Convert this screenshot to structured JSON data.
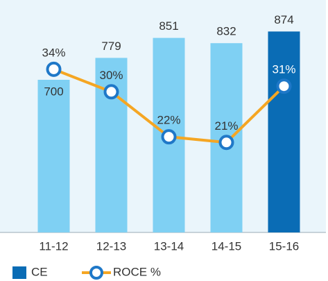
{
  "chart_data": {
    "type": "bar-line",
    "categories": [
      "11-12",
      "12-13",
      "13-14",
      "14-15",
      "15-16"
    ],
    "series": [
      {
        "name": "CE",
        "type": "bar",
        "color": "#7fd0f3",
        "highlight_color": "#0a6cb5",
        "values": [
          700,
          779,
          851,
          832,
          874
        ]
      },
      {
        "name": "ROCE %",
        "type": "line",
        "axis": "y2",
        "color": "#f5a623",
        "marker_color": "#1f78c8",
        "values": [
          34,
          30,
          22,
          21,
          31
        ],
        "value_labels": [
          "34%",
          "30%",
          "22%",
          "21%",
          "31%"
        ]
      }
    ],
    "ylim": [
      150,
      900
    ],
    "y2lim": [
      5,
      42
    ],
    "legend": "bottom-left"
  }
}
